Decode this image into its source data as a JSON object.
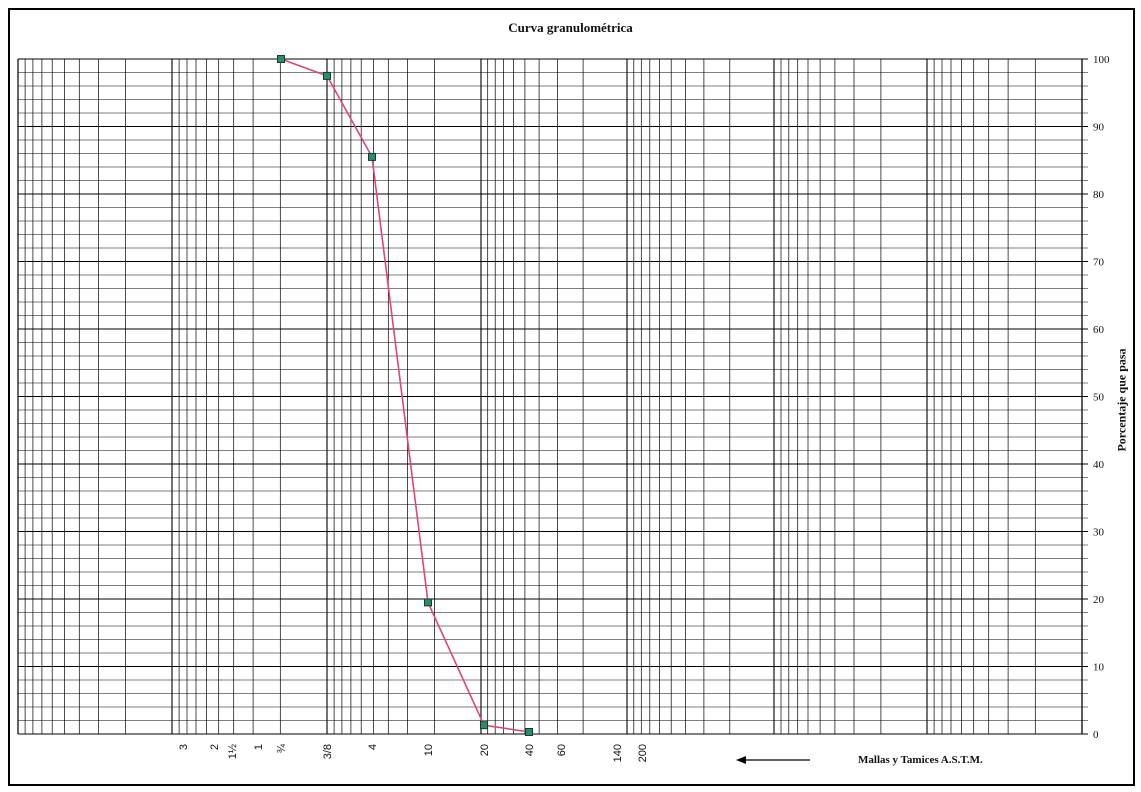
{
  "chart_data": {
    "type": "line",
    "title": "Curva granulométrica",
    "ylabel": "Porcentaje que pasa",
    "xlabel": "Mallas y Tamices A.S.T.M.",
    "y_ticks": [
      0,
      10,
      20,
      30,
      40,
      50,
      60,
      70,
      80,
      90,
      100
    ],
    "ylim": [
      0,
      100
    ],
    "sieve_ticks": [
      "3",
      "2",
      "1½",
      "1",
      "¾",
      "3/8",
      "4",
      "10",
      "20",
      "40",
      "60",
      "140",
      "200"
    ],
    "series": [
      {
        "x": [
          "¾",
          "3/8",
          "4",
          "10",
          "20",
          "40"
        ],
        "y": [
          100,
          97.5,
          85.5,
          19.5,
          1.3,
          0.3
        ]
      }
    ],
    "grid": true,
    "colors": {
      "line": "#e0457a",
      "marker": "#2e8b6a",
      "grid": "#000000"
    }
  }
}
